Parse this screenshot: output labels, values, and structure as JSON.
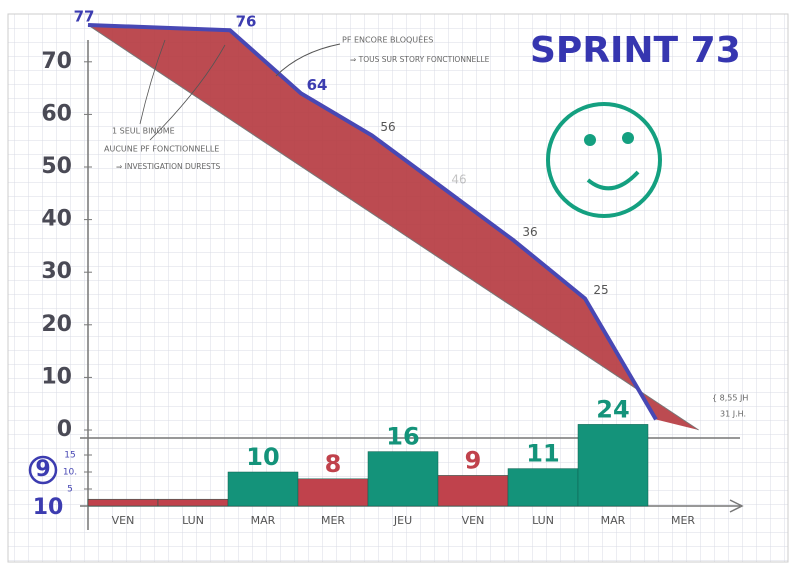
{
  "chart_data": [
    {
      "type": "line",
      "title": "SPRINT 73",
      "x": [
        0,
        2,
        3,
        4,
        5,
        6,
        7,
        8
      ],
      "xlim": [
        0,
        9
      ],
      "ylim": [
        0,
        75
      ],
      "yticks": [
        0,
        10,
        20,
        30,
        40,
        50,
        60,
        70
      ],
      "series": [
        {
          "color": "#4848b4",
          "values": [
            77,
            76,
            64,
            56,
            46,
            36,
            25,
            2
          ],
          "value_labels": [
            "77",
            "76",
            "64",
            "56",
            "46",
            "36",
            "25",
            null
          ]
        },
        {
          "color": "#777777",
          "x": [
            0,
            8.6
          ],
          "values": [
            77,
            0
          ]
        }
      ],
      "fill_color": "#b63c42",
      "annotations": [
        "PF ENCORE BLOQUÉES",
        "⇒ TOUS SUR STORY FONCTIONNELLE",
        "1 SEUL BINÔME",
        "AUCUNE PF FONCTIONNELLE",
        "⇒ INVESTIGATION DURESTS",
        "{ 8,55 JH",
        "31 J.H."
      ]
    },
    {
      "type": "bar",
      "categories": [
        "VEN",
        "LUN",
        "MAR",
        "MER",
        "JEU",
        "VEN",
        "LUN",
        "MAR",
        "MER"
      ],
      "values": [
        2,
        2,
        10,
        8,
        16,
        9,
        11,
        24,
        null
      ],
      "value_labels": [
        null,
        null,
        "10",
        "8",
        "16",
        "9",
        "11",
        "24",
        null
      ],
      "colors": [
        "#c0424c",
        "#c0424c",
        "#14937a",
        "#c0424c",
        "#14937a",
        "#c0424c",
        "#14937a",
        "#14937a",
        null
      ],
      "ylim": [
        0,
        25
      ],
      "yticks": [
        5,
        {
          "value": 10,
          "label": "10."
        },
        15
      ],
      "annotations": [
        "9",
        "10"
      ]
    }
  ]
}
